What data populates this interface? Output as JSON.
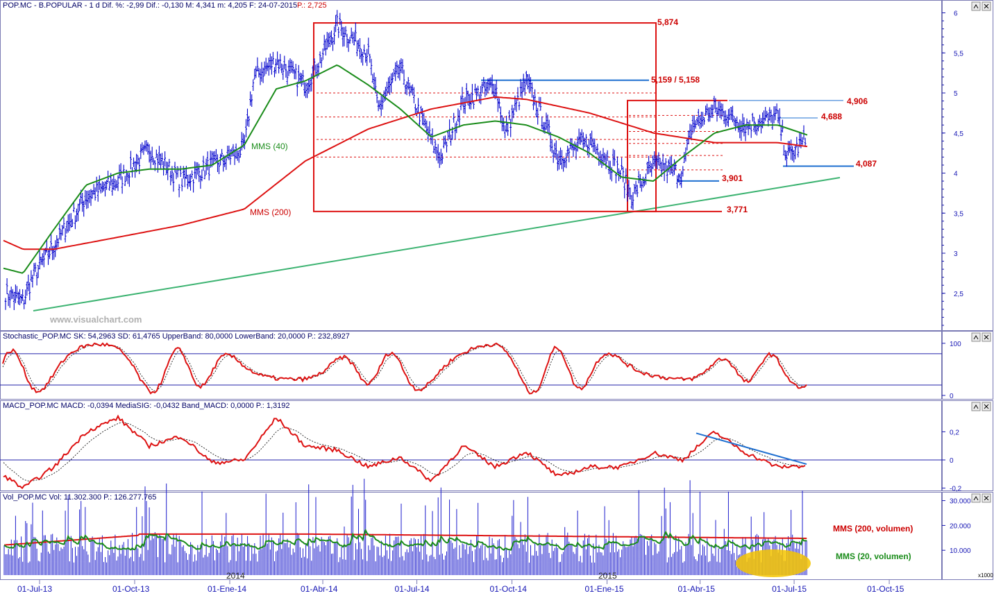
{
  "panels": {
    "price": {
      "header": "POP.MC - B.POPULAR - 1 d Dif. %: -2,99 Dif.: -0,130 M: 4,341 m: 4,205 F: 24-07-2015",
      "header_p": "P.: 2,725",
      "watermark": "www.visualchart.com",
      "annotations": {
        "mms40": "MMS (40)",
        "mms200": "MMS (200)",
        "l5874": "5,874",
        "l5159": "5,159 / 5,158",
        "l4906": "4,906",
        "l4688": "4,688",
        "l4087": "4,087",
        "l3901": "3,901",
        "l3771": "3,771"
      }
    },
    "stoch": {
      "header": "Stochastic_POP.MC SK: 54,2963 SD: 61,4765 UpperBand: 80,0000 LowerBand: 20,0000 P.: 232,8927"
    },
    "macd": {
      "header": "MACD_POP.MC MACD: -0,0394 MediaSIG: -0,0432 Band_MACD: 0,0000 P.: 1,3192"
    },
    "vol": {
      "header": "Vol_POP.MC Vol: 11.302.300 P.: 126.277.765",
      "label_200": "MMS (200, volumen)",
      "label_20": "MMS (20, volumen)",
      "year_2014": "2014",
      "year_2015": "2015",
      "unit": "x1000"
    }
  },
  "colors": {
    "price": "#0000cc",
    "mms40": "#1a8c1a",
    "mms200": "#dd1111",
    "trendline": "#3cb371",
    "level_blue": "#1e6fd0",
    "label_red": "#cc0000",
    "axis": "#1414b4",
    "highlight": "#f5c400"
  },
  "chart_data": [
    {
      "type": "line",
      "panel": "price",
      "ylim": [
        2.0,
        6.0
      ],
      "yticks": [
        "6",
        "5,5",
        "5",
        "4,5",
        "4",
        "3,5",
        "3",
        "2,5"
      ],
      "xticks": [
        "01-Jul-13",
        "01-Oct-13",
        "01-Ene-14",
        "01-Abr-14",
        "01-Jul-14",
        "01-Oct-14",
        "01-Ene-15",
        "01-Abr-15",
        "01-Jul-15",
        "01-Oct-15"
      ],
      "series": [
        {
          "name": "MMS (40)",
          "x": [
            "2013-04",
            "2013-06",
            "2013-07",
            "2013-08",
            "2013-09",
            "2013-10",
            "2013-11",
            "2013-12",
            "2014-01",
            "2014-02",
            "2014-03",
            "2014-04",
            "2014-05",
            "2014-06",
            "2014-07",
            "2014-08",
            "2014-09",
            "2014-10",
            "2014-11",
            "2014-12",
            "2015-01",
            "2015-02",
            "2015-03",
            "2015-04",
            "2015-05",
            "2015-06",
            "2015-07"
          ],
          "values": [
            2.95,
            2.75,
            3.3,
            3.85,
            4.0,
            4.05,
            4.05,
            4.1,
            4.35,
            5.05,
            5.15,
            5.35,
            5.1,
            4.8,
            4.45,
            4.6,
            4.65,
            4.6,
            4.45,
            4.25,
            3.95,
            3.9,
            4.2,
            4.5,
            4.6,
            4.6,
            4.47
          ]
        },
        {
          "name": "MMS (200)",
          "x": [
            "2013-04",
            "2013-06",
            "2013-07",
            "2013-09",
            "2013-11",
            "2014-01",
            "2014-03",
            "2014-05",
            "2014-07",
            "2014-09",
            "2014-10",
            "2014-12",
            "2015-02",
            "2015-04",
            "2015-06",
            "2015-07"
          ],
          "values": [
            3.4,
            3.05,
            3.05,
            3.2,
            3.35,
            3.55,
            4.15,
            4.55,
            4.8,
            4.95,
            4.92,
            4.75,
            4.5,
            4.38,
            4.38,
            4.33
          ]
        }
      ],
      "close_path_approx": [
        [
          "2013-04",
          3.2
        ],
        [
          "2013-05",
          2.6
        ],
        [
          "2013-06",
          2.4
        ],
        [
          "2013-06",
          2.7
        ],
        [
          "2013-07",
          3.1
        ],
        [
          "2013-08",
          3.7
        ],
        [
          "2013-09",
          3.9
        ],
        [
          "2013-10",
          4.3
        ],
        [
          "2013-11",
          3.9
        ],
        [
          "2013-12",
          4.1
        ],
        [
          "2014-01",
          4.3
        ],
        [
          "2014-01",
          5.2
        ],
        [
          "2014-02",
          5.4
        ],
        [
          "2014-03",
          5.1
        ],
        [
          "2014-03",
          5.3
        ],
        [
          "2014-04",
          5.85
        ],
        [
          "2014-05",
          5.5
        ],
        [
          "2014-05",
          4.8
        ],
        [
          "2014-06",
          5.3
        ],
        [
          "2014-07",
          4.4
        ],
        [
          "2014-07",
          4.2
        ],
        [
          "2014-08",
          4.9
        ],
        [
          "2014-09",
          5.1
        ],
        [
          "2014-09",
          4.5
        ],
        [
          "2014-10",
          5.15
        ],
        [
          "2014-11",
          4.2
        ],
        [
          "2014-12",
          4.4
        ],
        [
          "2015-01",
          4.0
        ],
        [
          "2015-01",
          3.7
        ],
        [
          "2015-02",
          4.1
        ],
        [
          "2015-03",
          4.0
        ],
        [
          "2015-03",
          4.6
        ],
        [
          "2015-04",
          4.8
        ],
        [
          "2015-05",
          4.6
        ],
        [
          "2015-06",
          4.7
        ],
        [
          "2015-06",
          4.2
        ],
        [
          "2015-07",
          4.45
        ],
        [
          "2015-07",
          4.22
        ]
      ],
      "levels": [
        5.874,
        5.159,
        4.906,
        4.688,
        4.087,
        3.901,
        3.771
      ]
    },
    {
      "type": "line",
      "panel": "stochastic",
      "ylim": [
        0,
        100
      ],
      "yticks": [
        "100",
        "0"
      ],
      "bands": [
        80,
        20
      ]
    },
    {
      "type": "line",
      "panel": "macd",
      "ylim": [
        -0.2,
        0.3
      ],
      "yticks": [
        "0,2",
        "0",
        "-0,2"
      ],
      "series": [
        {
          "name": "MACD",
          "x": [
            "2013-04",
            "2013-05",
            "2013-06",
            "2013-07",
            "2013-08",
            "2013-09",
            "2013-10",
            "2013-11",
            "2013-12",
            "2014-01",
            "2014-02",
            "2014-03",
            "2014-04",
            "2014-05",
            "2014-06",
            "2014-07",
            "2014-08",
            "2014-09",
            "2014-10",
            "2014-11",
            "2014-12",
            "2015-01",
            "2015-02",
            "2015-03",
            "2015-04",
            "2015-05",
            "2015-06",
            "2015-07"
          ],
          "values": [
            0.0,
            -0.05,
            -0.2,
            -0.05,
            0.2,
            0.3,
            0.1,
            0.17,
            -0.02,
            0.0,
            0.3,
            0.1,
            0.07,
            -0.05,
            0.02,
            -0.15,
            0.1,
            -0.05,
            0.06,
            -0.12,
            -0.05,
            -0.05,
            0.05,
            0.0,
            0.2,
            0.05,
            -0.05,
            -0.04
          ]
        }
      ]
    },
    {
      "type": "bar",
      "panel": "volume",
      "ylim": [
        0,
        35000
      ],
      "yticks": [
        "30.000",
        "20.000",
        "10.000"
      ],
      "unit": "x1000"
    }
  ]
}
